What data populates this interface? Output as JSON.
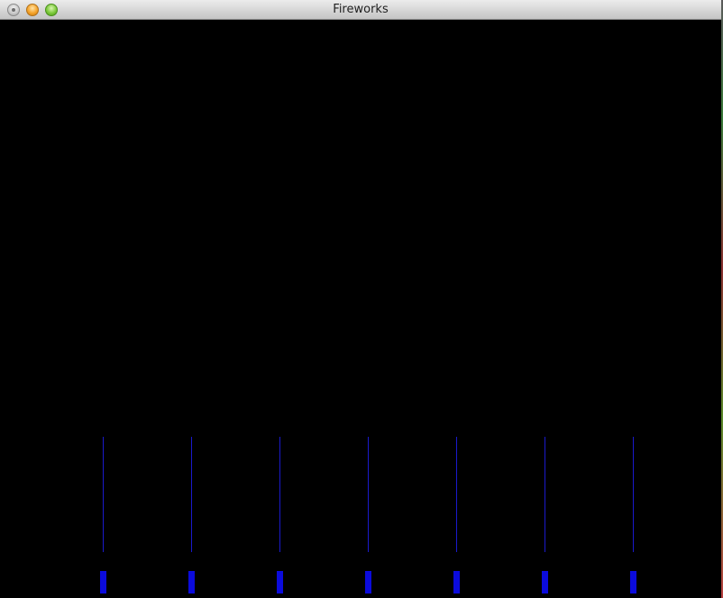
{
  "window": {
    "title": "Fireworks"
  },
  "titlebar": {
    "buttons": [
      {
        "name": "close-button",
        "icon": "close-icon"
      },
      {
        "name": "minimize-button",
        "icon": "minimize-icon"
      },
      {
        "name": "zoom-button",
        "icon": "zoom-icon"
      }
    ]
  },
  "scene": {
    "background": "#000000",
    "rocket_color": "#0b0bdc",
    "trail_color": "#1a1acc",
    "launcher_count": 7
  }
}
